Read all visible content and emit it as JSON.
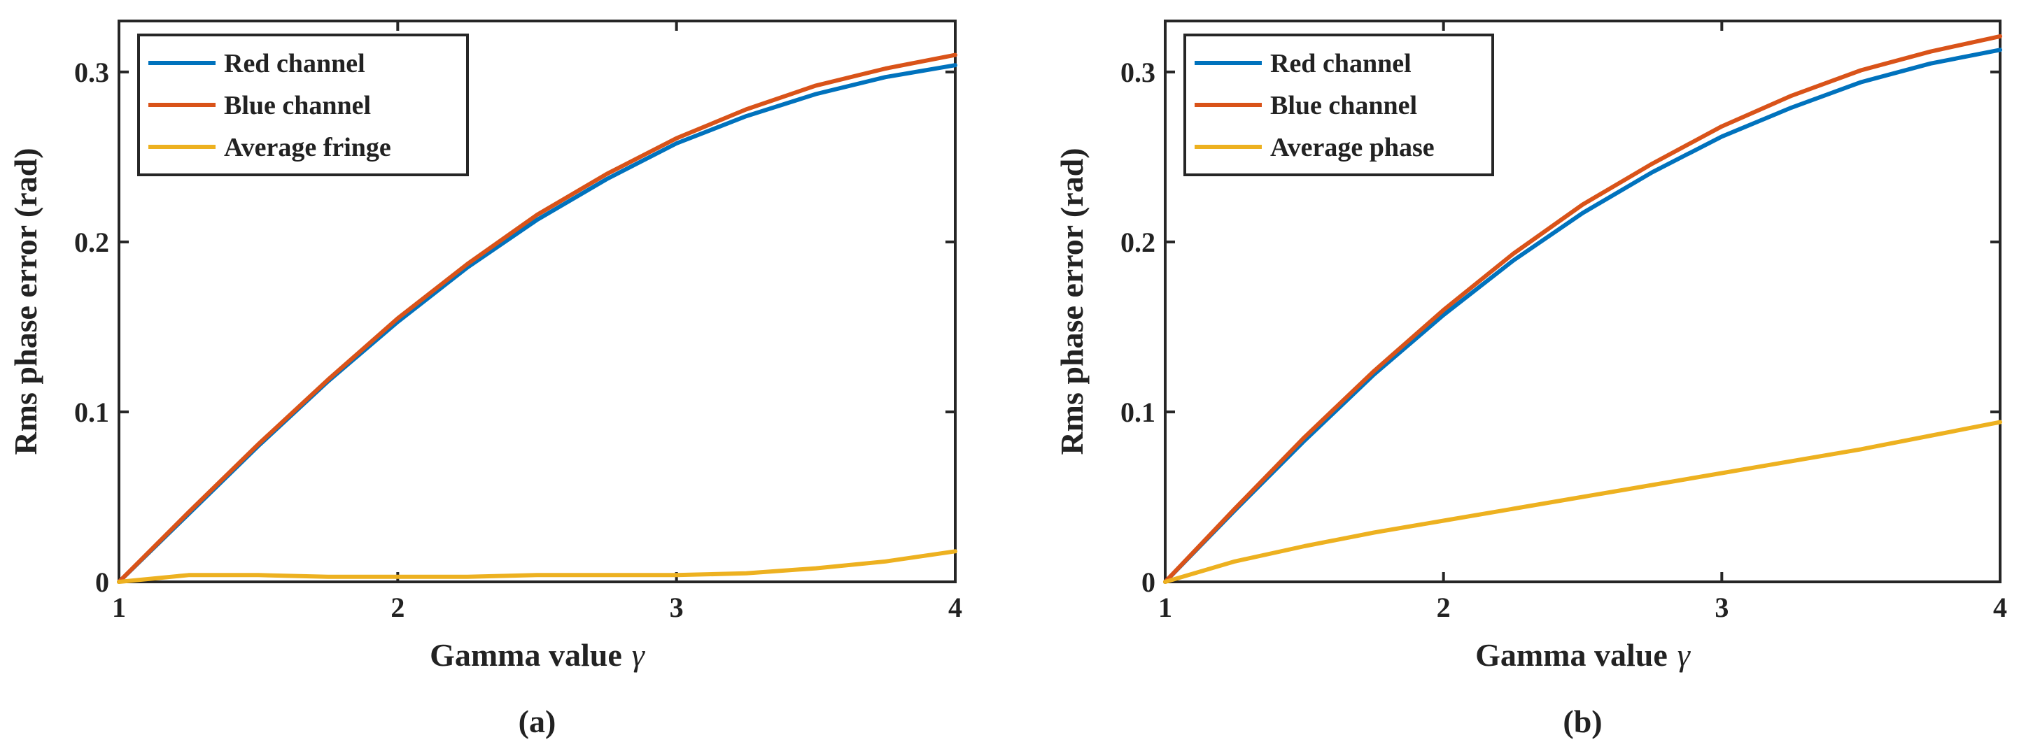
{
  "chart_data": [
    {
      "type": "line",
      "panel_label": "(a)",
      "xlabel": "Gamma value",
      "xlabel_symbol": "γ",
      "ylabel": "Rms phase error (rad)",
      "xlim": [
        1,
        4
      ],
      "ylim": [
        0,
        0.33
      ],
      "xticks": [
        1,
        2,
        3,
        4
      ],
      "xtick_labels": [
        "1",
        "2",
        "3",
        "4"
      ],
      "yticks": [
        0,
        0.1,
        0.2,
        0.3
      ],
      "ytick_labels": [
        "0",
        "0.1",
        "0.2",
        "0.3"
      ],
      "grid": false,
      "legend_position": "top-left",
      "series": [
        {
          "name": "Red channel",
          "color": "#0072BD",
          "x": [
            1,
            1.25,
            1.5,
            1.75,
            2,
            2.25,
            2.5,
            2.75,
            3,
            3.25,
            3.5,
            3.75,
            4
          ],
          "y": [
            0,
            0.04,
            0.08,
            0.118,
            0.153,
            0.185,
            0.213,
            0.237,
            0.258,
            0.274,
            0.287,
            0.297,
            0.304
          ]
        },
        {
          "name": "Blue channel",
          "color": "#D95319",
          "x": [
            1,
            1.25,
            1.5,
            1.75,
            2,
            2.25,
            2.5,
            2.75,
            3,
            3.25,
            3.5,
            3.75,
            4
          ],
          "y": [
            0,
            0.041,
            0.081,
            0.119,
            0.155,
            0.187,
            0.216,
            0.24,
            0.261,
            0.278,
            0.292,
            0.302,
            0.31
          ]
        },
        {
          "name": "Average fringe",
          "color": "#EDB120",
          "x": [
            1,
            1.25,
            1.5,
            1.75,
            2,
            2.25,
            2.5,
            2.75,
            3,
            3.25,
            3.5,
            3.75,
            4
          ],
          "y": [
            0,
            0.004,
            0.004,
            0.003,
            0.003,
            0.003,
            0.004,
            0.004,
            0.004,
            0.005,
            0.008,
            0.012,
            0.018
          ]
        }
      ]
    },
    {
      "type": "line",
      "panel_label": "(b)",
      "xlabel": "Gamma value",
      "xlabel_symbol": "γ",
      "ylabel": "Rms phase error (rad)",
      "xlim": [
        1,
        4
      ],
      "ylim": [
        0,
        0.33
      ],
      "xticks": [
        1,
        2,
        3,
        4
      ],
      "xtick_labels": [
        "1",
        "2",
        "3",
        "4"
      ],
      "yticks": [
        0,
        0.1,
        0.2,
        0.3
      ],
      "ytick_labels": [
        "0",
        "0.1",
        "0.2",
        "0.3"
      ],
      "grid": false,
      "legend_position": "top-left",
      "series": [
        {
          "name": "Red channel",
          "color": "#0072BD",
          "x": [
            1,
            1.25,
            1.5,
            1.75,
            2,
            2.25,
            2.5,
            2.75,
            3,
            3.25,
            3.5,
            3.75,
            4
          ],
          "y": [
            0,
            0.042,
            0.083,
            0.122,
            0.157,
            0.189,
            0.217,
            0.241,
            0.262,
            0.279,
            0.294,
            0.305,
            0.313
          ]
        },
        {
          "name": "Blue channel",
          "color": "#D95319",
          "x": [
            1,
            1.25,
            1.5,
            1.75,
            2,
            2.25,
            2.5,
            2.75,
            3,
            3.25,
            3.5,
            3.75,
            4
          ],
          "y": [
            0,
            0.043,
            0.085,
            0.124,
            0.16,
            0.193,
            0.222,
            0.246,
            0.268,
            0.286,
            0.301,
            0.312,
            0.321
          ]
        },
        {
          "name": "Average phase",
          "color": "#EDB120",
          "x": [
            1,
            1.25,
            1.5,
            1.75,
            2,
            2.25,
            2.5,
            2.75,
            3,
            3.25,
            3.5,
            3.75,
            4
          ],
          "y": [
            0,
            0.012,
            0.021,
            0.029,
            0.036,
            0.043,
            0.05,
            0.057,
            0.064,
            0.071,
            0.078,
            0.086,
            0.094
          ]
        }
      ]
    }
  ]
}
